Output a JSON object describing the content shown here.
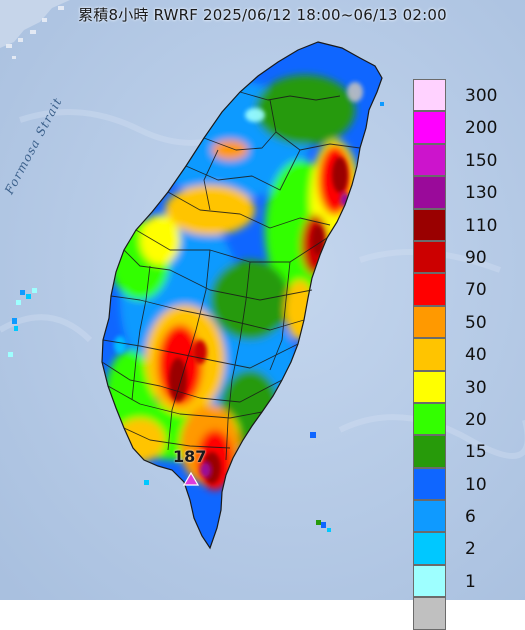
{
  "title": "累積8小時 RWRF 2025/06/12 18:00~06/13 02:00",
  "map_labels": {
    "strait": "Formosa Strait"
  },
  "max_station": {
    "value": "187"
  },
  "legend": {
    "items": [
      {
        "label": "300",
        "color": "#ffd2ff"
      },
      {
        "label": "200",
        "color": "#ff00ff"
      },
      {
        "label": "150",
        "color": "#cc14cc"
      },
      {
        "label": "130",
        "color": "#9a0a9a"
      },
      {
        "label": "110",
        "color": "#9a0000"
      },
      {
        "label": "90",
        "color": "#cc0000"
      },
      {
        "label": "70",
        "color": "#ff0000"
      },
      {
        "label": "50",
        "color": "#ff9900"
      },
      {
        "label": "40",
        "color": "#ffc400"
      },
      {
        "label": "30",
        "color": "#ffff00"
      },
      {
        "label": "20",
        "color": "#33ff00"
      },
      {
        "label": "15",
        "color": "#279a0a"
      },
      {
        "label": "10",
        "color": "#0f66ff"
      },
      {
        "label": "6",
        "color": "#0f9aff"
      },
      {
        "label": "2",
        "color": "#00c8ff"
      },
      {
        "label": "1",
        "color": "#9effff"
      },
      {
        "label": "",
        "color": "#c0c0c0"
      }
    ]
  },
  "colors": {
    "sea": "#b6cae4",
    "boundary": "#1a1a1a",
    "station_marker": "#dc3cdc"
  }
}
